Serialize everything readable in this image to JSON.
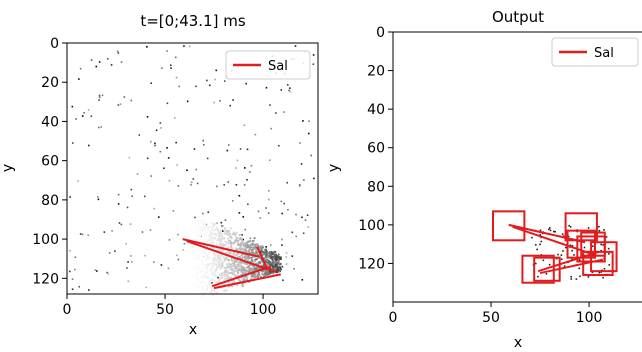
{
  "chart_data": [
    {
      "type": "scatter",
      "title": "t=[0;43.1] ms",
      "xlabel": "x",
      "ylabel": "y",
      "xlim": [
        0,
        128
      ],
      "ylim": [
        128,
        0
      ],
      "y_inverted": true,
      "xticks": [
        "0",
        "50",
        "100"
      ],
      "xtick_values": [
        0,
        50,
        100
      ],
      "yticks": [
        "0",
        "20",
        "40",
        "60",
        "80",
        "100",
        "120"
      ],
      "ytick_values": [
        0,
        20,
        40,
        60,
        80,
        100,
        120
      ],
      "background": "event-frame grayscale image",
      "legend": {
        "label": "Sal",
        "placement": "top-right"
      },
      "series": [
        {
          "name": "Sal",
          "color": "#e41a1c",
          "segments": [
            [
              [
                59,
                100
              ],
              [
                98,
                109
              ]
            ],
            [
              [
                61,
                101
              ],
              [
                107,
                117
              ]
            ],
            [
              [
                74,
                124
              ],
              [
                104,
                114
              ]
            ],
            [
              [
                75,
                125
              ],
              [
                109,
                118
              ]
            ],
            [
              [
                97,
                104
              ],
              [
                102,
                115
              ]
            ]
          ]
        }
      ]
    },
    {
      "type": "scatter",
      "title": "Output",
      "xlabel": "x",
      "ylabel": "y",
      "xlim": [
        0,
        128
      ],
      "ylim": [
        140,
        0
      ],
      "y_inverted": true,
      "xticks": [
        "0",
        "50",
        "100"
      ],
      "xtick_values": [
        0,
        50,
        100
      ],
      "yticks": [
        "0",
        "20",
        "40",
        "60",
        "80",
        "100",
        "120"
      ],
      "ytick_values": [
        0,
        20,
        40,
        60,
        80,
        100,
        120
      ],
      "legend": {
        "label": "Sal",
        "placement": "top-right"
      },
      "series": [
        {
          "name": "Sal",
          "color": "#e41a1c",
          "boxes": [
            {
              "x": 51,
              "y": 93,
              "w": 16,
              "h": 15
            },
            {
              "x": 88,
              "y": 94,
              "w": 16,
              "h": 14
            },
            {
              "x": 89,
              "y": 103,
              "w": 14,
              "h": 14
            },
            {
              "x": 94,
              "y": 106,
              "w": 14,
              "h": 13
            },
            {
              "x": 96,
              "y": 104,
              "w": 12,
              "h": 12
            },
            {
              "x": 101,
              "y": 109,
              "w": 13,
              "h": 15
            },
            {
              "x": 97,
              "y": 114,
              "w": 15,
              "h": 12
            },
            {
              "x": 66,
              "y": 116,
              "w": 16,
              "h": 14
            },
            {
              "x": 72,
              "y": 117,
              "w": 13,
              "h": 12
            }
          ],
          "segments": [
            [
              [
                59,
                100
              ],
              [
                98,
                109
              ]
            ],
            [
              [
                61,
                101
              ],
              [
                104,
                116
              ]
            ],
            [
              [
                74,
                124
              ],
              [
                105,
                114
              ]
            ],
            [
              [
                75,
                125
              ],
              [
                107,
                118
              ]
            ]
          ]
        }
      ]
    }
  ]
}
